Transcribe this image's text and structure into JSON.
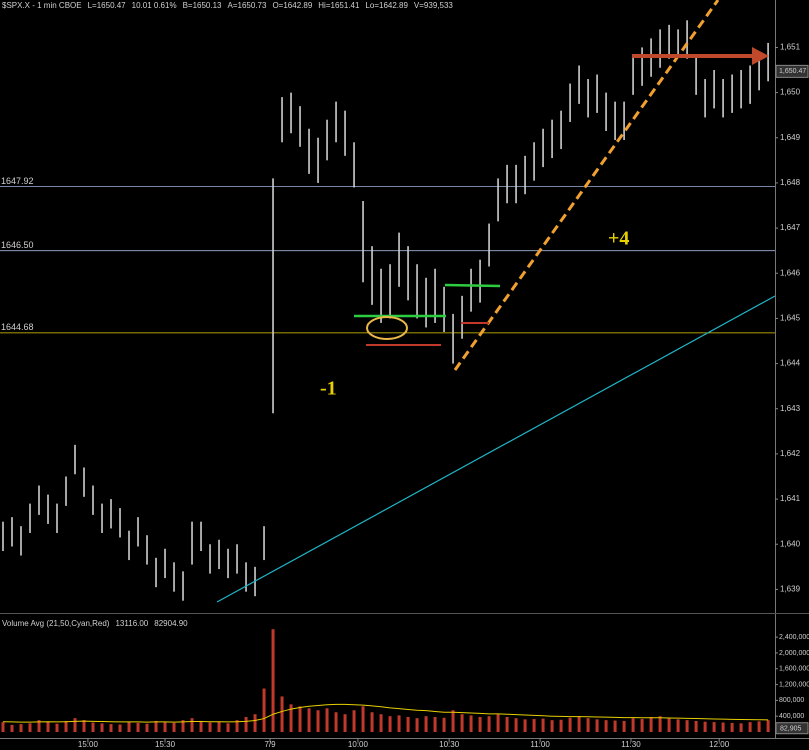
{
  "chart_data": [
    {
      "type": "ohlc",
      "header": [
        {
          "text": "$SPX.X - 1 min  CBOE",
          "color": "#e0e0e0"
        },
        {
          "text": "L=1650.47",
          "color": "#39d353"
        },
        {
          "text": "10.01  0.61%",
          "color": "#39d353"
        },
        {
          "text": "B=1650.13",
          "color": "#e0e0e0"
        },
        {
          "text": "A=1650.73",
          "color": "#e0e0e0"
        },
        {
          "text": "O=1642.89",
          "color": "#39d353"
        },
        {
          "text": "Hi=1651.41",
          "color": "#e0e0e0"
        },
        {
          "text": "Lo=1642.89",
          "color": "#e0e0e0"
        },
        {
          "text": "V=939,533",
          "color": "#e0e0e0"
        }
      ],
      "color": "#cfcfcf",
      "x": [
        1,
        4,
        7,
        10,
        13,
        16,
        19,
        22,
        25,
        28,
        31,
        34,
        37,
        40,
        43,
        46,
        49,
        52,
        55,
        58,
        61,
        64,
        67,
        70,
        73,
        76,
        79,
        82,
        85,
        88,
        91,
        94,
        97,
        100,
        103,
        106,
        109,
        112,
        115,
        118,
        121,
        124,
        127,
        130,
        133,
        136,
        139,
        142,
        145,
        148,
        151,
        154,
        157,
        160,
        163,
        166,
        169,
        172,
        175,
        178,
        181,
        184,
        187,
        190,
        193,
        196,
        199,
        202,
        205,
        208,
        211,
        214,
        217,
        220,
        223,
        226,
        229,
        232,
        235,
        238,
        241,
        244,
        247,
        250,
        253,
        256
      ],
      "high": [
        1640.5,
        1640.6,
        1640.4,
        1640.9,
        1641.3,
        1641.1,
        1640.9,
        1641.5,
        1642.2,
        1641.7,
        1641.3,
        1640.9,
        1641.0,
        1640.8,
        1640.3,
        1640.6,
        1640.2,
        1639.7,
        1639.9,
        1639.6,
        1639.4,
        1640.5,
        1640.5,
        1640.0,
        1640.1,
        1639.9,
        1640.0,
        1639.6,
        1639.5,
        1640.4,
        1648.1,
        1649.9,
        1650.0,
        1649.7,
        1649.2,
        1649.0,
        1649.4,
        1649.8,
        1649.6,
        1648.9,
        1647.6,
        1646.6,
        1646.1,
        1646.2,
        1646.9,
        1646.6,
        1646.2,
        1645.9,
        1646.1,
        1645.7,
        1645.1,
        1645.5,
        1646.1,
        1646.3,
        1647.1,
        1648.1,
        1648.4,
        1648.4,
        1648.6,
        1648.9,
        1649.2,
        1649.4,
        1649.6,
        1650.2,
        1650.6,
        1650.3,
        1650.4,
        1650.0,
        1649.8,
        1649.8,
        1650.8,
        1651.0,
        1651.2,
        1651.4,
        1651.5,
        1651.4,
        1651.6,
        1650.8,
        1650.3,
        1650.5,
        1650.3,
        1650.4,
        1650.5,
        1650.6,
        1650.9,
        1651.1
      ],
      "low": [
        1639.85,
        1639.95,
        1639.75,
        1640.25,
        1640.65,
        1640.45,
        1640.25,
        1640.85,
        1641.55,
        1641.05,
        1640.65,
        1640.25,
        1640.35,
        1640.15,
        1639.65,
        1639.95,
        1639.55,
        1639.05,
        1639.25,
        1638.95,
        1638.75,
        1639.55,
        1639.85,
        1639.35,
        1639.45,
        1639.25,
        1639.35,
        1638.95,
        1638.85,
        1639.65,
        1642.9,
        1648.9,
        1649.1,
        1648.8,
        1648.2,
        1648.0,
        1648.5,
        1648.9,
        1648.6,
        1647.9,
        1645.8,
        1645.3,
        1644.9,
        1645.0,
        1645.7,
        1645.4,
        1645.0,
        1644.8,
        1644.9,
        1644.7,
        1644.0,
        1644.55,
        1645.15,
        1645.35,
        1646.15,
        1647.15,
        1647.55,
        1647.55,
        1647.75,
        1648.05,
        1648.35,
        1648.55,
        1648.75,
        1649.35,
        1649.75,
        1649.45,
        1649.55,
        1649.15,
        1648.95,
        1648.95,
        1649.95,
        1650.15,
        1650.35,
        1650.55,
        1650.75,
        1650.85,
        1650.75,
        1649.95,
        1649.45,
        1649.65,
        1649.45,
        1649.55,
        1649.65,
        1649.75,
        1650.05,
        1650.25
      ],
      "xlim": [
        0,
        258.3
      ],
      "xticks": [
        {
          "value": 29.3,
          "label": "15:00"
        },
        {
          "value": 55,
          "label": "15:30"
        },
        {
          "value": 90,
          "label": "7/9"
        },
        {
          "value": 119.3,
          "label": "10:00"
        },
        {
          "value": 149.7,
          "label": "10:30"
        },
        {
          "value": 180,
          "label": "11:00"
        },
        {
          "value": 210.3,
          "label": "11:30"
        },
        {
          "value": 239.7,
          "label": "12:00"
        }
      ],
      "ylim": [
        1638.5,
        1652.05
      ],
      "yticks": [
        {
          "value": 1639,
          "label": "1,639"
        },
        {
          "value": 1640,
          "label": "1,640"
        },
        {
          "value": 1641,
          "label": "1,641"
        },
        {
          "value": 1642,
          "label": "1,642"
        },
        {
          "value": 1643,
          "label": "1,643"
        },
        {
          "value": 1644,
          "label": "1,644"
        },
        {
          "value": 1645,
          "label": "1,645"
        },
        {
          "value": 1646,
          "label": "1,646"
        },
        {
          "value": 1647,
          "label": "1,647"
        },
        {
          "value": 1648,
          "label": "1,648"
        },
        {
          "value": 1649,
          "label": "1,649"
        },
        {
          "value": 1650,
          "label": "1,650"
        },
        {
          "value": 1651,
          "label": "1,651"
        }
      ],
      "hlines": [
        {
          "value": 1647.92,
          "label": "1647.92",
          "color": "#9fb4d8"
        },
        {
          "value": 1646.5,
          "label": "1646.50",
          "color": "#9fb4d8"
        },
        {
          "value": 1644.68,
          "label": "1644.68",
          "color": "#e8d000"
        }
      ],
      "last_price": {
        "value": 1650.47,
        "label": "1,650.47"
      },
      "annotations": [
        "-1",
        "+4"
      ]
    },
    {
      "type": "bar",
      "title": "Volume Avg (21,50,Cyan,Red)",
      "avg_labels": [
        {
          "text": "13116.00",
          "color": "#35c6d8"
        },
        {
          "text": "82904.90",
          "color": "#e8d000"
        }
      ],
      "color": "#c0392b",
      "avg_color": "#e8d000",
      "values": [
        250000,
        180000,
        200000,
        220000,
        300000,
        260000,
        210000,
        280000,
        350000,
        300000,
        240000,
        220000,
        200000,
        190000,
        260000,
        230000,
        210000,
        280000,
        250000,
        230000,
        300000,
        350000,
        280000,
        240000,
        260000,
        220000,
        300000,
        380000,
        450000,
        1100000,
        2600000,
        900000,
        700000,
        650000,
        600000,
        550000,
        600000,
        500000,
        450000,
        550000,
        650000,
        500000,
        450000,
        400000,
        420000,
        380000,
        350000,
        400000,
        380000,
        360000,
        550000,
        450000,
        420000,
        380000,
        400000,
        450000,
        380000,
        350000,
        320000,
        330000,
        340000,
        300000,
        310000,
        360000,
        400000,
        350000,
        320000,
        300000,
        290000,
        280000,
        350000,
        330000,
        380000,
        400000,
        350000,
        320000,
        300000,
        280000,
        260000,
        250000,
        240000,
        230000,
        220000,
        250000,
        270000,
        300000
      ],
      "avg": [
        260000,
        255000,
        250000,
        250000,
        255000,
        260000,
        255000,
        260000,
        270000,
        275000,
        270000,
        265000,
        260000,
        255000,
        255000,
        255000,
        250000,
        255000,
        255000,
        250000,
        255000,
        265000,
        265000,
        260000,
        260000,
        255000,
        260000,
        270000,
        290000,
        340000,
        450000,
        520000,
        580000,
        620000,
        650000,
        670000,
        690000,
        700000,
        700000,
        690000,
        680000,
        660000,
        640000,
        610000,
        590000,
        570000,
        550000,
        540000,
        520000,
        500000,
        500000,
        490000,
        480000,
        470000,
        460000,
        460000,
        450000,
        440000,
        430000,
        420000,
        410000,
        400000,
        395000,
        390000,
        390000,
        385000,
        380000,
        375000,
        370000,
        365000,
        365000,
        360000,
        360000,
        360000,
        355000,
        350000,
        345000,
        340000,
        335000,
        330000,
        325000,
        320000,
        315000,
        312000,
        310000,
        308000
      ],
      "ylim": [
        0,
        2960000
      ],
      "yticks": [
        {
          "value": 400000,
          "label": "400,000"
        },
        {
          "value": 800000,
          "label": "800,000"
        },
        {
          "value": 1200000,
          "label": "1,200,000"
        },
        {
          "value": 1600000,
          "label": "1,600,000"
        },
        {
          "value": 2000000,
          "label": "2,000,000"
        },
        {
          "value": 2400000,
          "label": "2,400,000"
        }
      ],
      "last_volume": {
        "value": 82905,
        "label": "82,905"
      }
    }
  ]
}
